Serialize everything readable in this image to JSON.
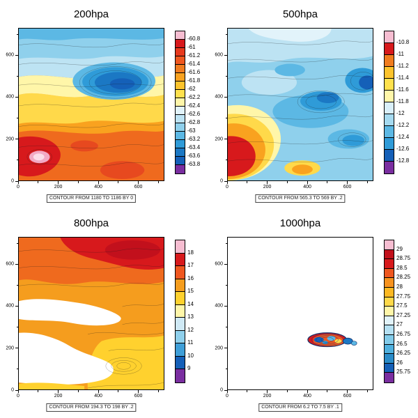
{
  "figure": {
    "background": "#ffffff",
    "layout": "2x2 grid of filled-contour map panels with right-hand labelbars and contour-info captions"
  },
  "panels": [
    {
      "id": "200hpa",
      "title": "200hpa",
      "caption": "CONTOUR FROM 1180 TO 1186 BY 0",
      "axis": {
        "major_ticks": [
          0,
          200,
          400,
          600
        ],
        "minor_ticks": [
          100,
          300,
          500,
          700
        ]
      },
      "colorbar": {
        "labels": [
          "-60.8",
          "-61",
          "-61.2",
          "-61.4",
          "-61.6",
          "-61.8",
          "-62",
          "-62.2",
          "-62.4",
          "-62.6",
          "-62.8",
          "-63",
          "-63.2",
          "-63.4",
          "-63.6",
          "-63.8"
        ],
        "colors": [
          "#f6bdd1",
          "#d7191c",
          "#e7391d",
          "#ef571f",
          "#f07c1f",
          "#f9a21f",
          "#fdc32c",
          "#ffe14d",
          "#fff6a9",
          "#e2f3fa",
          "#bde3f3",
          "#8fd0ec",
          "#5cb8e4",
          "#2f9bd8",
          "#1b78c4",
          "#1560b8",
          "#7a2ea0"
        ]
      }
    },
    {
      "id": "500hpa",
      "title": "500hpa",
      "caption": "CONTOUR FROM 565.3 TO 569 BY .2",
      "axis": {
        "major_ticks": [
          0,
          200,
          400,
          600
        ],
        "minor_ticks": [
          100,
          300,
          500,
          700
        ]
      },
      "colorbar": {
        "labels": [
          "-10.8",
          "-11",
          "-11.2",
          "-11.4",
          "-11.6",
          "-11.8",
          "-12",
          "-12.2",
          "-12.4",
          "-12.6",
          "-12.8"
        ],
        "colors": [
          "#f6bdd1",
          "#d7191c",
          "#f07c1f",
          "#fdc32c",
          "#ffe14d",
          "#fff6a9",
          "#d9effa",
          "#a5daf0",
          "#5cb8e4",
          "#2f9bd8",
          "#1560b8",
          "#7a2ea0"
        ]
      }
    },
    {
      "id": "800hpa",
      "title": "800hpa",
      "caption": "CONTOUR FROM 194.3 TO 198 BY .2",
      "axis": {
        "major_ticks": [
          0,
          200,
          400,
          600
        ],
        "minor_ticks": [
          100,
          300,
          500,
          700
        ]
      },
      "colorbar": {
        "labels": [
          "18",
          "17",
          "16",
          "15",
          "14",
          "13",
          "12",
          "11",
          "10",
          "9"
        ],
        "colors": [
          "#f6bdd1",
          "#d7191c",
          "#ef571f",
          "#f59d1e",
          "#ffd12e",
          "#fff6a9",
          "#cfe9f5",
          "#8fd0ec",
          "#3f9fd8",
          "#1560b8",
          "#7a2ea0"
        ]
      }
    },
    {
      "id": "1000hpa",
      "title": "1000hpa",
      "caption": "CONTOUR FROM 6.2 TO 7.5 BY .1",
      "axis": {
        "major_ticks": [
          0,
          200,
          400,
          600
        ],
        "minor_ticks": [
          100,
          300,
          500,
          700
        ]
      },
      "colorbar": {
        "labels": [
          "29",
          "28.75",
          "28.5",
          "28.25",
          "28",
          "27.75",
          "27.5",
          "27.25",
          "27",
          "26.75",
          "26.5",
          "26.25",
          "26",
          "25.75"
        ],
        "colors": [
          "#f6bdd1",
          "#c2101c",
          "#d7191c",
          "#ef571f",
          "#f7921e",
          "#fcb822",
          "#ffd94a",
          "#fff6a9",
          "#e2f3fa",
          "#b5e0f2",
          "#82cbe9",
          "#4fb0de",
          "#2a8cc9",
          "#1560b8",
          "#7a2ea0"
        ]
      }
    }
  ],
  "chart_data": [
    {
      "type": "heatmap",
      "title": "200hpa",
      "xlabel": "",
      "ylabel": "",
      "x_ticks": [
        0,
        200,
        400,
        600
      ],
      "y_ticks": [
        0,
        200,
        400,
        600
      ],
      "x_range": [
        0,
        730
      ],
      "y_range": [
        0,
        730
      ],
      "colorbar_levels": [
        -60.8,
        -61,
        -61.2,
        -61.4,
        -61.6,
        -61.8,
        -62,
        -62.2,
        -62.4,
        -62.6,
        -62.8,
        -63,
        -63.2,
        -63.4,
        -63.6,
        -63.8
      ],
      "contour_note": "CONTOUR FROM 1180 TO 1186 BY 0",
      "legend_position": "right",
      "description": "Filled temperature shading: warm orange/red field across the south with a red maximum and pale-pink core in the lower-left, yellow transition band across the middle, light-blue field to the north, cyan strip along the top edge, and a dark-blue cold pool upper centre-right; thin black height contour lines (1180-1186) overlaid everywhere."
    },
    {
      "type": "heatmap",
      "title": "500hpa",
      "xlabel": "",
      "ylabel": "",
      "x_ticks": [
        0,
        200,
        400,
        600
      ],
      "y_ticks": [
        0,
        200,
        400,
        600
      ],
      "x_range": [
        0,
        730
      ],
      "y_range": [
        0,
        730
      ],
      "colorbar_levels": [
        -10.8,
        -11,
        -11.2,
        -11.4,
        -11.6,
        -11.8,
        -12,
        -12.2,
        -12.4,
        -12.6,
        -12.8
      ],
      "contour_note": "CONTOUR FROM 565.3 TO 569 BY .2",
      "legend_position": "right",
      "description": "Predominantly light-blue field with paler patches in the north-west and darker blue pools in the centre and along the east edge; a strong warm anomaly (pale-yellow, yellow, orange, red core) occupies the lower-left corner with a smaller orange patch bottom-centre; dense black height contours (565.3-569 by 0.2) overlaid."
    },
    {
      "type": "heatmap",
      "title": "800hpa",
      "xlabel": "",
      "ylabel": "",
      "x_ticks": [
        0,
        200,
        400,
        600
      ],
      "y_ticks": [
        0,
        200,
        400,
        600
      ],
      "x_range": [
        0,
        730
      ],
      "y_range": [
        0,
        730
      ],
      "colorbar_levels": [
        18,
        17,
        16,
        15,
        14,
        13,
        12,
        11,
        10,
        9
      ],
      "contour_note": "CONTOUR FROM 194.3 TO 198 BY .2",
      "legend_position": "right",
      "description": "Warm orange field over land with deep-red maximum along the top edge and yellow band in the south-east; large white masked (no-data) sea areas across the centre-left and lower-left resembling coastal seas; concentric contour rings (cyclonic feature) lower centre-right; black contours 194.3-198 by 0.2."
    },
    {
      "type": "heatmap",
      "title": "1000hpa",
      "xlabel": "",
      "ylabel": "",
      "x_ticks": [
        0,
        200,
        400,
        600
      ],
      "y_ticks": [
        0,
        200,
        400,
        600
      ],
      "x_range": [
        0,
        730
      ],
      "y_range": [
        0,
        730
      ],
      "colorbar_levels": [
        29,
        28.75,
        28.5,
        28.25,
        28,
        27.75,
        27.5,
        27.25,
        27,
        26.75,
        26.5,
        26.25,
        26,
        25.75
      ],
      "contour_note": "CONTOUR FROM 6.2 TO 7.5 BY .1",
      "legend_position": "right",
      "description": "Almost entirely blank white panel; the only valid data is a small elongated multicoloured patch (red with dark-blue, cyan and yellow specks, heavy dark contouring) centred near x=450-550, y=200-260, with a tiny detached navy speck just to its east."
    }
  ]
}
